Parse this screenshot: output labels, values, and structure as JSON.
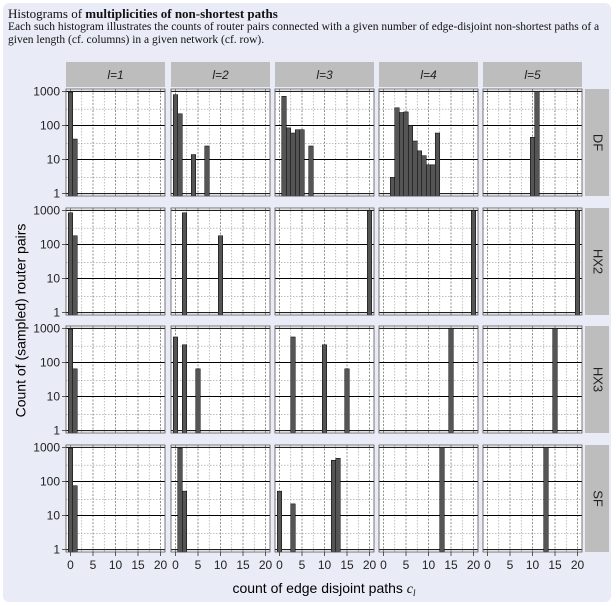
{
  "title": {
    "prefix": "Histograms of ",
    "bold": "multiplicities of non-shortest paths"
  },
  "description": "Each such histogram illustrates the counts of router pairs connected with a given number of edge-disjoint non-shortest paths of a given length (cf. columns) in a given network (cf. row).",
  "colors": {
    "background": "#e9ecf7",
    "strip": "#bdbdbd",
    "bar": "#555555",
    "bar_outline": "#000000",
    "panel": "#ffffff"
  },
  "chart_data": {
    "type": "bar",
    "xlabel": "count of edge disjoint paths c_l",
    "ylabel": "Count of (sampled) router pairs",
    "yscale": "log",
    "xlim": [
      -1,
      21
    ],
    "ylim": [
      1,
      1000
    ],
    "xticks": [
      0,
      5,
      10,
      15,
      20
    ],
    "yticks": [
      1,
      10,
      100,
      1000
    ],
    "ytick_labels": [
      "1",
      "10",
      "100",
      "1000"
    ],
    "columns": [
      "l=1",
      "l=2",
      "l=3",
      "l=4",
      "l=5"
    ],
    "rows": [
      "DF",
      "HX2",
      "HX3",
      "SF"
    ],
    "grid": true,
    "panels": [
      [
        {
          "bars": [
            [
              0,
              950
            ],
            [
              1,
              40
            ]
          ]
        },
        {
          "bars": [
            [
              0,
              800
            ],
            [
              1,
              220
            ],
            [
              4,
              14
            ],
            [
              7,
              25
            ]
          ]
        },
        {
          "bars": [
            [
              1,
              720
            ],
            [
              2,
              85
            ],
            [
              3,
              60
            ],
            [
              4,
              75
            ],
            [
              5,
              75
            ],
            [
              7,
              25
            ]
          ]
        },
        {
          "bars": [
            [
              2,
              3
            ],
            [
              3,
              330
            ],
            [
              4,
              240
            ],
            [
              5,
              250
            ],
            [
              6,
              100
            ],
            [
              7,
              35
            ],
            [
              8,
              18
            ],
            [
              9,
              13
            ],
            [
              10,
              7
            ],
            [
              11,
              7
            ],
            [
              12,
              60
            ]
          ]
        },
        {
          "bars": [
            [
              10,
              45
            ],
            [
              11,
              1000
            ]
          ]
        }
      ],
      [
        {
          "bars": [
            [
              0,
              850
            ],
            [
              1,
              180
            ]
          ]
        },
        {
          "bars": [
            [
              2,
              850
            ],
            [
              10,
              180
            ]
          ]
        },
        {
          "bars": [
            [
              20,
              1000
            ]
          ]
        },
        {
          "bars": [
            [
              20,
              1000
            ]
          ]
        },
        {
          "bars": [
            [
              20,
              1000
            ]
          ]
        }
      ],
      [
        {
          "bars": [
            [
              0,
              950
            ],
            [
              1,
              65
            ]
          ]
        },
        {
          "bars": [
            [
              0,
              560
            ],
            [
              2,
              330
            ],
            [
              5,
              65
            ]
          ]
        },
        {
          "bars": [
            [
              3,
              560
            ],
            [
              10,
              330
            ],
            [
              15,
              65
            ]
          ]
        },
        {
          "bars": [
            [
              15,
              1000
            ]
          ]
        },
        {
          "bars": [
            [
              15,
              1000
            ]
          ]
        }
      ],
      [
        {
          "bars": [
            [
              0,
              950
            ],
            [
              1,
              75
            ]
          ]
        },
        {
          "bars": [
            [
              1,
              950
            ],
            [
              2,
              52
            ]
          ]
        },
        {
          "bars": [
            [
              0,
              52
            ],
            [
              3,
              22
            ],
            [
              12,
              420
            ],
            [
              13,
              480
            ]
          ]
        },
        {
          "bars": [
            [
              13,
              1000
            ]
          ]
        },
        {
          "bars": [
            [
              13,
              1000
            ]
          ]
        }
      ]
    ]
  }
}
